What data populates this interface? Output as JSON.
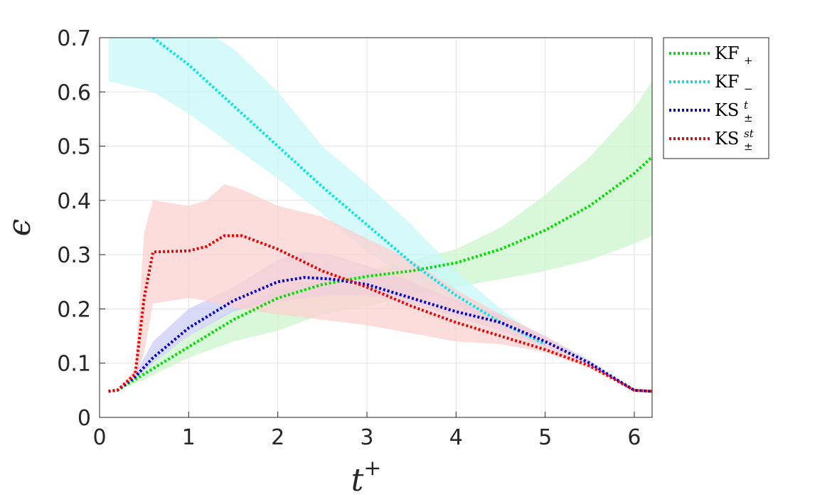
{
  "chart_data": {
    "type": "line",
    "xlabel": "t",
    "xlabel_sup": "+",
    "ylabel": "ϵ",
    "xlim": [
      0,
      6.2
    ],
    "ylim": [
      0,
      0.7
    ],
    "xticks": [
      "0",
      "1",
      "2",
      "3",
      "4",
      "5",
      "6"
    ],
    "yticks": [
      "0",
      "0.1",
      "0.2",
      "0.3",
      "0.4",
      "0.5",
      "0.6",
      "0.7"
    ],
    "grid": true,
    "legend_position": "outside-top-right",
    "series": [
      {
        "name": "KF",
        "sub": "+",
        "sup": "",
        "color": "#00dd00",
        "band_color": "#ccf5cc",
        "x": [
          0.1,
          0.2,
          0.5,
          1.0,
          1.5,
          2.0,
          2.5,
          3.0,
          3.5,
          4.0,
          4.5,
          5.0,
          5.5,
          6.0,
          6.2
        ],
        "y": [
          0.048,
          0.05,
          0.08,
          0.13,
          0.18,
          0.22,
          0.245,
          0.26,
          0.27,
          0.285,
          0.31,
          0.345,
          0.39,
          0.45,
          0.48
        ],
        "lower": [
          0.048,
          0.05,
          0.07,
          0.11,
          0.14,
          0.16,
          0.19,
          0.205,
          0.225,
          0.24,
          0.255,
          0.27,
          0.29,
          0.32,
          0.335
        ],
        "upper": [
          0.048,
          0.05,
          0.09,
          0.15,
          0.2,
          0.235,
          0.255,
          0.27,
          0.29,
          0.31,
          0.35,
          0.41,
          0.48,
          0.57,
          0.62
        ]
      },
      {
        "name": "KF",
        "sub": "−",
        "sup": "",
        "color": "#00e5e5",
        "band_color": "#c8f8f8",
        "x": [
          0.6,
          1.0,
          1.5,
          2.0,
          2.5,
          3.0,
          3.5,
          4.0,
          4.5,
          5.0
        ],
        "y": [
          0.7,
          0.65,
          0.575,
          0.5,
          0.425,
          0.355,
          0.285,
          0.225,
          0.175,
          0.135
        ],
        "lower": [
          0.6,
          0.56,
          0.5,
          0.44,
          0.375,
          0.305,
          0.255,
          0.21,
          0.17,
          0.13
        ],
        "upper": [
          0.73,
          0.73,
          0.68,
          0.6,
          0.5,
          0.43,
          0.355,
          0.27,
          0.2,
          0.14
        ],
        "band_x": [
          0.1,
          0.6,
          1.0,
          1.5,
          2.0,
          2.5,
          3.0,
          3.5,
          4.0,
          4.5,
          5.0
        ],
        "band_lower": [
          0.62,
          0.6,
          0.56,
          0.5,
          0.44,
          0.375,
          0.305,
          0.255,
          0.21,
          0.17,
          0.13
        ],
        "band_upper": [
          0.7,
          0.73,
          0.73,
          0.68,
          0.6,
          0.5,
          0.43,
          0.355,
          0.27,
          0.2,
          0.14
        ]
      },
      {
        "name": "KS",
        "sub": "±",
        "sup": "t",
        "color": "#0000cc",
        "band_color": "#ccccf5",
        "x": [
          0.1,
          0.2,
          0.4,
          0.6,
          1.0,
          1.5,
          2.0,
          2.3,
          2.6,
          3.0,
          3.5,
          4.0,
          4.5,
          5.0,
          5.5,
          6.0,
          6.2
        ],
        "y": [
          0.048,
          0.05,
          0.075,
          0.11,
          0.165,
          0.215,
          0.25,
          0.258,
          0.255,
          0.245,
          0.22,
          0.195,
          0.175,
          0.14,
          0.1,
          0.05,
          0.048
        ],
        "lower": [
          0.048,
          0.05,
          0.07,
          0.1,
          0.15,
          0.195,
          0.215,
          0.22,
          0.225,
          0.225,
          0.21,
          0.185,
          0.16,
          0.13,
          0.095,
          0.05,
          0.048
        ],
        "upper": [
          0.048,
          0.05,
          0.08,
          0.14,
          0.2,
          0.24,
          0.29,
          0.305,
          0.3,
          0.28,
          0.25,
          0.215,
          0.19,
          0.15,
          0.105,
          0.05,
          0.048
        ]
      },
      {
        "name": "KS",
        "sub": "±",
        "sup": "st",
        "color": "#ee0000",
        "band_color": "#fcd0d0",
        "x": [
          0.1,
          0.2,
          0.4,
          0.5,
          0.6,
          1.0,
          1.2,
          1.4,
          1.6,
          2.0,
          2.5,
          3.0,
          3.5,
          4.0,
          4.5,
          5.0,
          5.5,
          6.0,
          6.2
        ],
        "y": [
          0.048,
          0.05,
          0.08,
          0.22,
          0.305,
          0.307,
          0.315,
          0.335,
          0.335,
          0.31,
          0.27,
          0.24,
          0.205,
          0.175,
          0.15,
          0.125,
          0.095,
          0.05,
          0.048
        ],
        "lower": [
          0.048,
          0.05,
          0.07,
          0.12,
          0.21,
          0.22,
          0.215,
          0.205,
          0.2,
          0.19,
          0.18,
          0.17,
          0.155,
          0.14,
          0.135,
          0.12,
          0.09,
          0.05,
          0.048
        ],
        "upper": [
          0.048,
          0.05,
          0.09,
          0.34,
          0.4,
          0.39,
          0.4,
          0.43,
          0.42,
          0.39,
          0.37,
          0.33,
          0.29,
          0.235,
          0.19,
          0.15,
          0.1,
          0.05,
          0.048
        ]
      }
    ]
  }
}
